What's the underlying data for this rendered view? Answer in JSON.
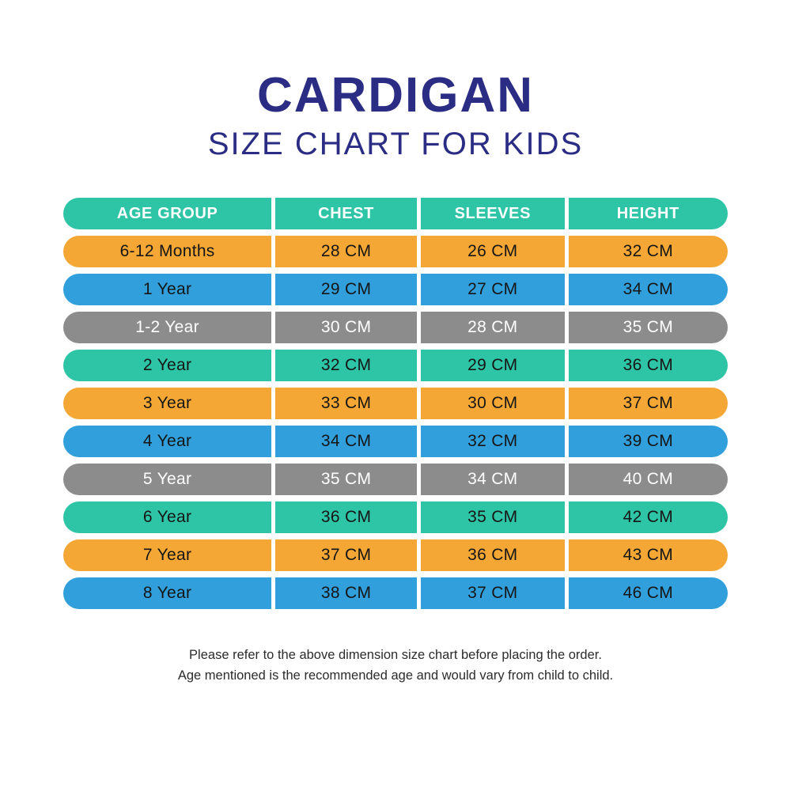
{
  "title": {
    "main": "CARDIGAN",
    "subtitle": "SIZE CHART FOR KIDS"
  },
  "colors": {
    "title_navy": "#2b2d84",
    "teal": "#2ec4a6",
    "orange": "#f4a734",
    "blue": "#309fdb",
    "gray": "#8c8c8c",
    "row_text_dark": "#161616",
    "row_text_light": "#ffffff",
    "header_text": "#ffffff"
  },
  "table": {
    "headers": [
      "AGE GROUP",
      "CHEST",
      "SLEEVES",
      "HEIGHT"
    ],
    "header_color": "teal",
    "rows": [
      {
        "age": "6-12 Months",
        "chest": "28 CM",
        "sleeves": "26 CM",
        "height": "32 CM",
        "color": "orange",
        "text": "dark"
      },
      {
        "age": "1 Year",
        "chest": "29 CM",
        "sleeves": "27 CM",
        "height": "34 CM",
        "color": "blue",
        "text": "dark"
      },
      {
        "age": "1-2 Year",
        "chest": "30 CM",
        "sleeves": "28 CM",
        "height": "35 CM",
        "color": "gray",
        "text": "light"
      },
      {
        "age": "2 Year",
        "chest": "32 CM",
        "sleeves": "29 CM",
        "height": "36 CM",
        "color": "teal",
        "text": "dark"
      },
      {
        "age": "3 Year",
        "chest": "33 CM",
        "sleeves": "30 CM",
        "height": "37 CM",
        "color": "orange",
        "text": "dark"
      },
      {
        "age": "4 Year",
        "chest": "34 CM",
        "sleeves": "32 CM",
        "height": "39 CM",
        "color": "blue",
        "text": "dark"
      },
      {
        "age": "5 Year",
        "chest": "35 CM",
        "sleeves": "34 CM",
        "height": "40 CM",
        "color": "gray",
        "text": "light"
      },
      {
        "age": "6 Year",
        "chest": "36 CM",
        "sleeves": "35 CM",
        "height": "42 CM",
        "color": "teal",
        "text": "dark"
      },
      {
        "age": "7 Year",
        "chest": "37 CM",
        "sleeves": "36 CM",
        "height": "43 CM",
        "color": "orange",
        "text": "dark"
      },
      {
        "age": "8 Year",
        "chest": "38 CM",
        "sleeves": "37 CM",
        "height": "46 CM",
        "color": "blue",
        "text": "dark"
      }
    ]
  },
  "footer": {
    "line1": "Please refer to the above dimension size chart before placing the order.",
    "line2": "Age mentioned is the recommended age and would vary from child to child."
  },
  "chart_data": {
    "type": "table",
    "title": "CARDIGAN SIZE CHART FOR KIDS",
    "columns": [
      "AGE GROUP",
      "CHEST",
      "SLEEVES",
      "HEIGHT"
    ],
    "rows": [
      [
        "6-12 Months",
        "28 CM",
        "26 CM",
        "32 CM"
      ],
      [
        "1 Year",
        "29 CM",
        "27 CM",
        "34 CM"
      ],
      [
        "1-2 Year",
        "30 CM",
        "28 CM",
        "35 CM"
      ],
      [
        "2 Year",
        "32 CM",
        "29 CM",
        "36 CM"
      ],
      [
        "3 Year",
        "33 CM",
        "30 CM",
        "37 CM"
      ],
      [
        "4 Year",
        "34 CM",
        "32 CM",
        "39 CM"
      ],
      [
        "5 Year",
        "35 CM",
        "34 CM",
        "40 CM"
      ],
      [
        "6 Year",
        "36 CM",
        "35 CM",
        "42 CM"
      ],
      [
        "7 Year",
        "37 CM",
        "36 CM",
        "43 CM"
      ],
      [
        "8 Year",
        "38 CM",
        "37 CM",
        "46 CM"
      ]
    ],
    "units": "CM",
    "row_color_cycle": [
      "orange",
      "blue",
      "gray",
      "teal"
    ]
  }
}
